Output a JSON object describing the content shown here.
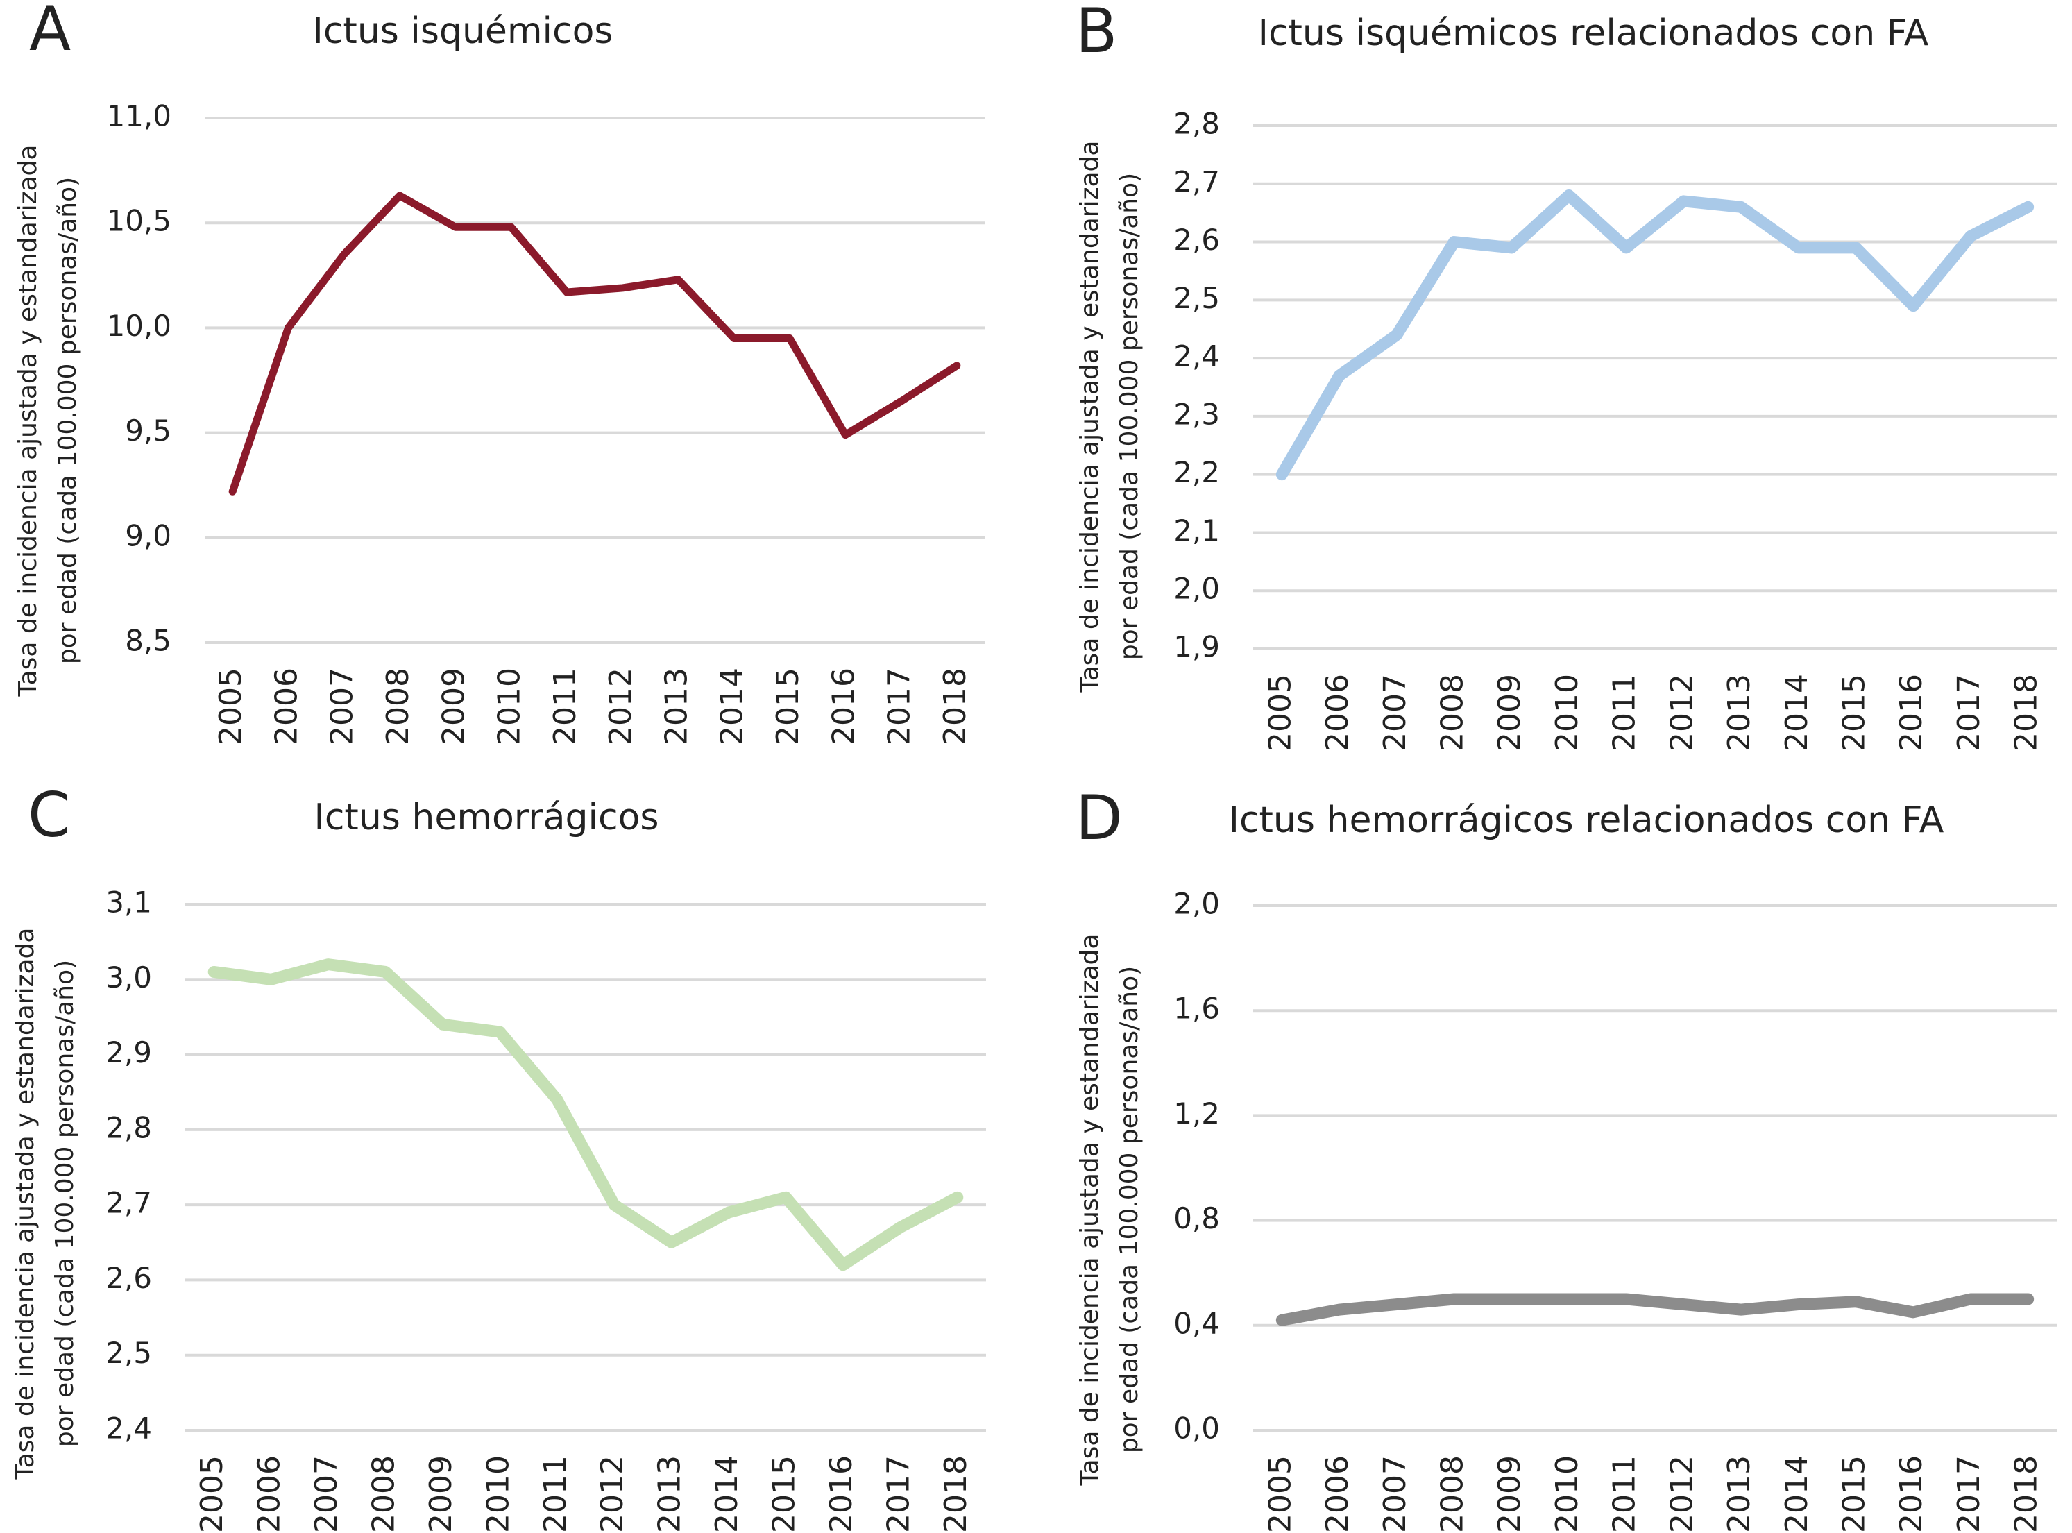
{
  "chart_data": [
    {
      "type": "line",
      "panel": "A",
      "title": "Ictus isquémicos",
      "y_label": [
        "Tasa de incidencia ajustada y estandarizada",
        "por edad (cada 100.000 personas/año)"
      ],
      "categories": [
        "2005",
        "2006",
        "2007",
        "2008",
        "2009",
        "2010",
        "2011",
        "2012",
        "2013",
        "2014",
        "2015",
        "2016",
        "2017",
        "2018"
      ],
      "values": [
        9.22,
        10.0,
        10.35,
        10.63,
        10.48,
        10.48,
        10.17,
        10.19,
        10.23,
        9.95,
        9.95,
        9.49,
        9.65,
        9.82
      ],
      "color": "#8b1a2b",
      "ylim": [
        8.5,
        11.0
      ],
      "yticks": [
        {
          "value": 8.5,
          "label": "8,5"
        },
        {
          "value": 9.0,
          "label": "9,0"
        },
        {
          "value": 9.5,
          "label": "9,5"
        },
        {
          "value": 10.0,
          "label": "10,0"
        },
        {
          "value": 10.5,
          "label": "10,5"
        },
        {
          "value": 11.0,
          "label": "11,0"
        }
      ],
      "grid": true
    },
    {
      "type": "line",
      "panel": "B",
      "title": "Ictus isquémicos relacionados con FA",
      "y_label": [
        "Tasa de incidencia ajustada y estandarizada",
        "por edad (cada 100.000 personas/año)"
      ],
      "categories": [
        "2005",
        "2006",
        "2007",
        "2008",
        "2009",
        "2010",
        "2011",
        "2012",
        "2013",
        "2014",
        "2015",
        "2016",
        "2017",
        "2018"
      ],
      "values": [
        2.2,
        2.37,
        2.44,
        2.6,
        2.59,
        2.68,
        2.59,
        2.67,
        2.66,
        2.59,
        2.59,
        2.49,
        2.61,
        2.66
      ],
      "color": "#a9c9e8",
      "ylim": [
        1.9,
        2.8
      ],
      "yticks": [
        {
          "value": 1.9,
          "label": "1,9"
        },
        {
          "value": 2.0,
          "label": "2,0"
        },
        {
          "value": 2.1,
          "label": "2,1"
        },
        {
          "value": 2.2,
          "label": "2,2"
        },
        {
          "value": 2.3,
          "label": "2,3"
        },
        {
          "value": 2.4,
          "label": "2,4"
        },
        {
          "value": 2.5,
          "label": "2,5"
        },
        {
          "value": 2.6,
          "label": "2,6"
        },
        {
          "value": 2.7,
          "label": "2,7"
        },
        {
          "value": 2.8,
          "label": "2,8"
        }
      ],
      "grid": true
    },
    {
      "type": "line",
      "panel": "C",
      "title": "Ictus hemorrágicos",
      "y_label": [
        "Tasa de incidencia ajustada y estandarizada",
        "por edad (cada 100.000 personas/año)"
      ],
      "categories": [
        "2005",
        "2006",
        "2007",
        "2008",
        "2009",
        "2010",
        "2011",
        "2012",
        "2013",
        "2014",
        "2015",
        "2016",
        "2017",
        "2018"
      ],
      "values": [
        3.01,
        3.0,
        3.02,
        3.01,
        2.94,
        2.93,
        2.84,
        2.7,
        2.65,
        2.69,
        2.71,
        2.62,
        2.67,
        2.71
      ],
      "color": "#c5e0b4",
      "ylim": [
        2.4,
        3.1
      ],
      "yticks": [
        {
          "value": 2.4,
          "label": "2,4"
        },
        {
          "value": 2.5,
          "label": "2,5"
        },
        {
          "value": 2.6,
          "label": "2,6"
        },
        {
          "value": 2.7,
          "label": "2,7"
        },
        {
          "value": 2.8,
          "label": "2,8"
        },
        {
          "value": 2.9,
          "label": "2,9"
        },
        {
          "value": 3.0,
          "label": "3,0"
        },
        {
          "value": 3.1,
          "label": "3,1"
        }
      ],
      "grid": true
    },
    {
      "type": "line",
      "panel": "D",
      "title": "Ictus hemorrágicos relacionados con FA",
      "y_label": [
        "Tasa de incidencia ajustada y estandarizada",
        "por edad (cada 100.000 personas/año)"
      ],
      "categories": [
        "2005",
        "2006",
        "2007",
        "2008",
        "2009",
        "2010",
        "2011",
        "2012",
        "2013",
        "2014",
        "2015",
        "2016",
        "2017",
        "2018"
      ],
      "values": [
        0.42,
        0.46,
        0.48,
        0.5,
        0.5,
        0.5,
        0.5,
        0.48,
        0.46,
        0.48,
        0.49,
        0.45,
        0.5,
        0.5
      ],
      "color": "#8c8c8c",
      "ylim": [
        0.0,
        2.0
      ],
      "yticks": [
        {
          "value": 0.0,
          "label": "0,0"
        },
        {
          "value": 0.4,
          "label": "0,4"
        },
        {
          "value": 0.8,
          "label": "0,8"
        },
        {
          "value": 1.2,
          "label": "1,2"
        },
        {
          "value": 1.6,
          "label": "1,6"
        },
        {
          "value": 2.0,
          "label": "2,0"
        }
      ],
      "grid": true
    }
  ]
}
